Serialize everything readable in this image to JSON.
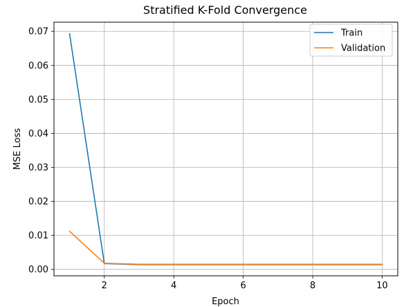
{
  "chart_data": {
    "type": "line",
    "title": "Stratified K-Fold Convergence",
    "xlabel": "Epoch",
    "ylabel": "MSE Loss",
    "x": [
      1,
      2,
      3,
      4,
      5,
      6,
      7,
      8,
      9,
      10
    ],
    "series": [
      {
        "name": "Train",
        "color": "#1f77b4",
        "values": [
          0.0693,
          0.0017,
          0.0014,
          0.0014,
          0.0014,
          0.0014,
          0.0014,
          0.0014,
          0.0014,
          0.0014
        ]
      },
      {
        "name": "Validation",
        "color": "#ff7f0e",
        "values": [
          0.0112,
          0.0018,
          0.0015,
          0.0015,
          0.0015,
          0.0015,
          0.0015,
          0.0015,
          0.0015,
          0.0015
        ]
      }
    ],
    "xlim": [
      0.55,
      10.45
    ],
    "ylim": [
      -0.0019,
      0.0727
    ],
    "xticks": [
      2,
      4,
      6,
      8,
      10
    ],
    "yticks": [
      0.0,
      0.01,
      0.02,
      0.03,
      0.04,
      0.05,
      0.06,
      0.07
    ],
    "xtick_labels": [
      "2",
      "4",
      "6",
      "8",
      "10"
    ],
    "ytick_labels": [
      "0.00",
      "0.01",
      "0.02",
      "0.03",
      "0.04",
      "0.05",
      "0.06",
      "0.07"
    ],
    "grid": true,
    "legend_position": "top-right"
  }
}
